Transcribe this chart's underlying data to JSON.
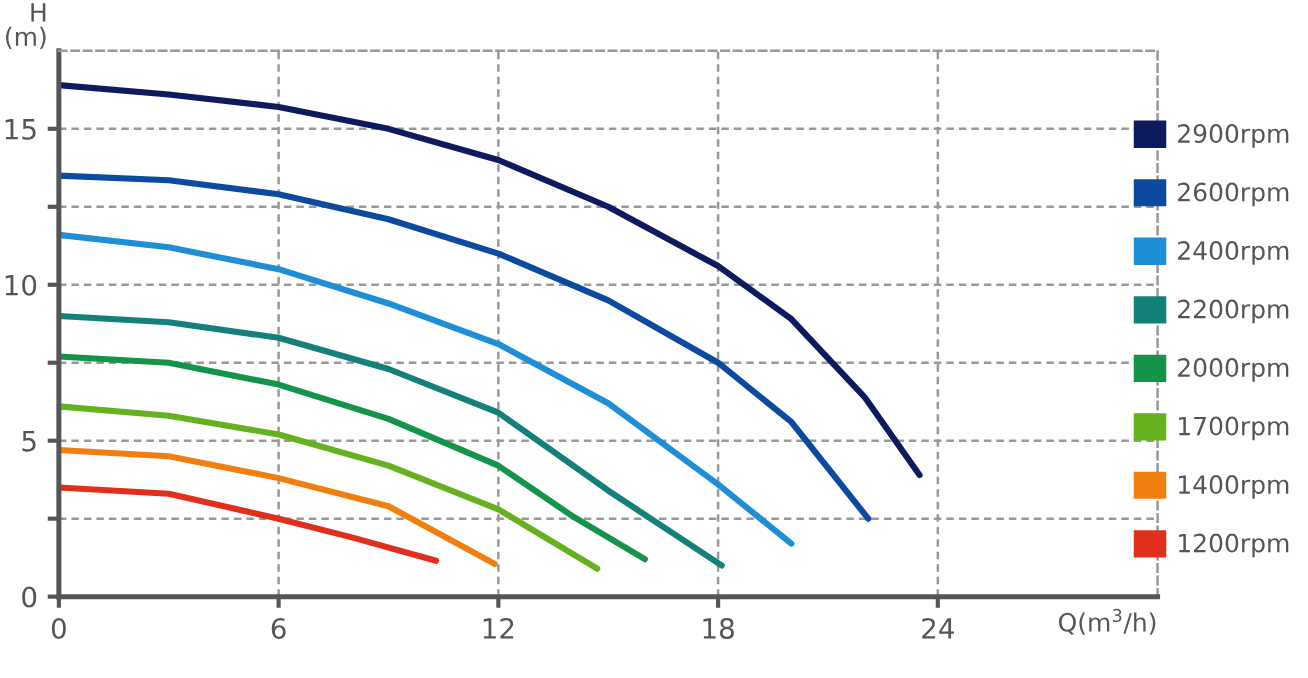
{
  "chart_data": {
    "type": "line",
    "xlabel": "Q(m$^{3}$/h)",
    "ylabel": "H\n(m)",
    "xlim": [
      0,
      30
    ],
    "ylim": [
      0,
      17.5
    ],
    "xticks": [
      0,
      6,
      12,
      18,
      24
    ],
    "yticks": [
      0,
      {
        "value": 2.5,
        "label": null
      },
      5,
      {
        "value": 7.5,
        "label": null
      },
      10,
      {
        "value": 12.5,
        "label": null
      },
      15
    ],
    "grid": true,
    "legend": "right",
    "marker": "none",
    "line_style": "solid",
    "series": [
      {
        "name": "2900rpm",
        "color": "#0d1b5e",
        "x": [
          0,
          3,
          6,
          9,
          12,
          15,
          18,
          20,
          22,
          23.5
        ],
        "values": [
          16.4,
          16.1,
          15.7,
          15.0,
          14.0,
          12.5,
          10.6,
          8.9,
          6.4,
          3.9
        ]
      },
      {
        "name": "2600rpm",
        "color": "#0b4a9e",
        "x": [
          0,
          3,
          6,
          9,
          12,
          15,
          18,
          20,
          22.1
        ],
        "values": [
          13.5,
          13.35,
          12.9,
          12.1,
          11.0,
          9.5,
          7.5,
          5.6,
          2.5
        ]
      },
      {
        "name": "2400rpm",
        "color": "#1e8fd6",
        "x": [
          0,
          3,
          6,
          9,
          12,
          15,
          18,
          20
        ],
        "values": [
          11.6,
          11.2,
          10.5,
          9.4,
          8.1,
          6.2,
          3.6,
          1.7
        ]
      },
      {
        "name": "2200rpm",
        "color": "#138079",
        "x": [
          0,
          3,
          6,
          9,
          12,
          15,
          18.1
        ],
        "values": [
          9.0,
          8.8,
          8.3,
          7.3,
          5.9,
          3.4,
          1.0
        ]
      },
      {
        "name": "2000rpm",
        "color": "#14944a",
        "x": [
          0,
          3,
          6,
          9,
          12,
          14,
          16
        ],
        "values": [
          7.7,
          7.5,
          6.8,
          5.7,
          4.2,
          2.6,
          1.2
        ]
      },
      {
        "name": "1700rpm",
        "color": "#66b21e",
        "x": [
          0,
          3,
          6,
          9,
          12,
          14.7
        ],
        "values": [
          6.1,
          5.8,
          5.2,
          4.2,
          2.8,
          0.9
        ]
      },
      {
        "name": "1400rpm",
        "color": "#f07f0f",
        "x": [
          0,
          3,
          6,
          9,
          11.9
        ],
        "values": [
          4.7,
          4.5,
          3.8,
          2.9,
          1.05
        ]
      },
      {
        "name": "1200rpm",
        "color": "#e0301c",
        "x": [
          0,
          3,
          6,
          8,
          10.3
        ],
        "values": [
          3.5,
          3.3,
          2.5,
          1.9,
          1.15
        ]
      }
    ]
  }
}
